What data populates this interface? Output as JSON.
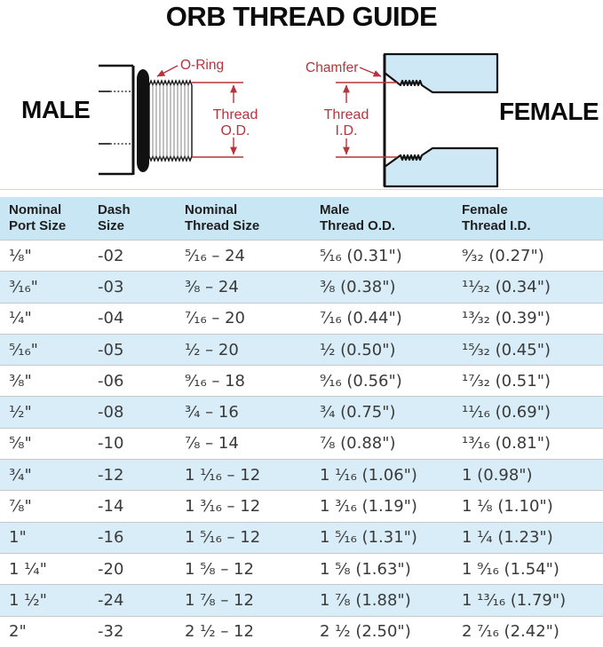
{
  "title": "ORB THREAD GUIDE",
  "diagram": {
    "male_label": "MALE",
    "female_label": "FEMALE",
    "annotations": {
      "oring": "O-Ring",
      "thread_od_line1": "Thread",
      "thread_od_line2": "O.D.",
      "chamfer": "Chamfer",
      "thread_id_line1": "Thread",
      "thread_id_line2": "I.D."
    }
  },
  "colors": {
    "header_bg": "#c9e6f5",
    "row_alt_bg": "#d9edf8",
    "diagram_fill": "#cfe8f5",
    "annotation_red": "#b6343c",
    "body_text": "#3a3a3a"
  },
  "table": {
    "columns": [
      "Nominal\nPort Size",
      "Dash\nSize",
      "Nominal\nThread Size",
      "Male\nThread O.D.",
      "Female\nThread I.D."
    ],
    "rows": [
      [
        "¹⁄₈\"",
        "-02",
        "⁵⁄₁₆ – 24",
        "⁵⁄₁₆ (0.31\")",
        "⁹⁄₃₂ (0.27\")"
      ],
      [
        "³⁄₁₆\"",
        "-03",
        "³⁄₈ – 24",
        "³⁄₈ (0.38\")",
        "¹¹⁄₃₂ (0.34\")"
      ],
      [
        "¹⁄₄\"",
        "-04",
        "⁷⁄₁₆ – 20",
        "⁷⁄₁₆ (0.44\")",
        "¹³⁄₃₂ (0.39\")"
      ],
      [
        "⁵⁄₁₆\"",
        "-05",
        "¹⁄₂ – 20",
        "¹⁄₂ (0.50\")",
        "¹⁵⁄₃₂ (0.45\")"
      ],
      [
        "³⁄₈\"",
        "-06",
        "⁹⁄₁₆ – 18",
        "⁹⁄₁₆ (0.56\")",
        "¹⁷⁄₃₂ (0.51\")"
      ],
      [
        "¹⁄₂\"",
        "-08",
        "³⁄₄ – 16",
        "³⁄₄ (0.75\")",
        "¹¹⁄₁₆ (0.69\")"
      ],
      [
        "⁵⁄₈\"",
        "-10",
        "⁷⁄₈ – 14",
        "⁷⁄₈ (0.88\")",
        "¹³⁄₁₆ (0.81\")"
      ],
      [
        "³⁄₄\"",
        "-12",
        "1 ¹⁄₁₆ – 12",
        "1 ¹⁄₁₆ (1.06\")",
        "1 (0.98\")"
      ],
      [
        "⁷⁄₈\"",
        "-14",
        "1 ³⁄₁₆ – 12",
        "1 ³⁄₁₆ (1.19\")",
        "1 ¹⁄₈ (1.10\")"
      ],
      [
        "1\"",
        "-16",
        "1 ⁵⁄₁₆ – 12",
        "1 ⁵⁄₁₆ (1.31\")",
        "1 ¹⁄₄ (1.23\")"
      ],
      [
        "1 ¹⁄₄\"",
        "-20",
        "1 ⁵⁄₈ – 12",
        "1 ⁵⁄₈ (1.63\")",
        "1 ⁹⁄₁₆ (1.54\")"
      ],
      [
        "1 ¹⁄₂\"",
        "-24",
        "1 ⁷⁄₈ – 12",
        "1 ⁷⁄₈ (1.88\")",
        "1 ¹³⁄₁₆ (1.79\")"
      ],
      [
        "2\"",
        "-32",
        "2 ¹⁄₂ – 12",
        "2 ¹⁄₂ (2.50\")",
        "2 ⁷⁄₁₆ (2.42\")"
      ]
    ]
  }
}
